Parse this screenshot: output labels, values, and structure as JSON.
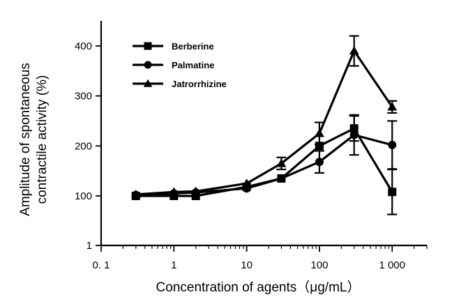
{
  "chart_data": {
    "type": "line",
    "xlabel": "Concentration of agents（μg/mL）",
    "ylabel_lines": [
      "Amplitude of spontaneous",
      "contractile activity (%)"
    ],
    "x_scale": "log",
    "xlim": [
      0.1,
      3000
    ],
    "ylim": [
      1,
      450
    ],
    "x_ticks": [
      {
        "value": 0.1,
        "label": "0. 1"
      },
      {
        "value": 1,
        "label": "1"
      },
      {
        "value": 10,
        "label": "10"
      },
      {
        "value": 100,
        "label": "100"
      },
      {
        "value": 1000,
        "label": "1 000"
      }
    ],
    "y_ticks": [
      {
        "value": 1,
        "label": "1"
      },
      {
        "value": 100,
        "label": "100"
      },
      {
        "value": 200,
        "label": "200"
      },
      {
        "value": 300,
        "label": "300"
      },
      {
        "value": 400,
        "label": "400"
      }
    ],
    "legend_position": "top-left",
    "series": [
      {
        "name": "Berberine",
        "marker": "square",
        "x": [
          0.3,
          1,
          2,
          10,
          30,
          100,
          300,
          1000
        ],
        "y": [
          100,
          100,
          100,
          118,
          135,
          200,
          235,
          108
        ],
        "err": [
          0,
          0,
          0,
          0,
          0,
          0,
          25,
          45
        ]
      },
      {
        "name": "Palmatine",
        "marker": "circle",
        "x": [
          0.3,
          1,
          2,
          10,
          30,
          100,
          300,
          1000
        ],
        "y": [
          102,
          105,
          107,
          115,
          135,
          168,
          222,
          202
        ],
        "err": [
          0,
          0,
          0,
          0,
          0,
          22,
          40,
          48
        ]
      },
      {
        "name": "Jatrorrhizine",
        "marker": "triangle",
        "x": [
          0.3,
          1,
          2,
          10,
          30,
          100,
          300,
          1000
        ],
        "y": [
          103,
          108,
          109,
          125,
          165,
          225,
          390,
          278
        ],
        "err": [
          0,
          0,
          0,
          0,
          12,
          22,
          30,
          12
        ]
      }
    ]
  }
}
